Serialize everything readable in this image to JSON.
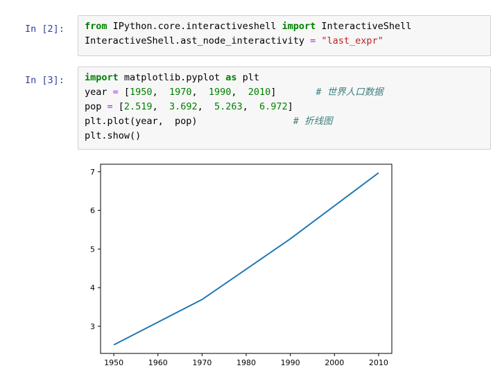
{
  "cells": [
    {
      "prompt": "In  [2]:",
      "lines": [
        [
          {
            "t": "kw",
            "v": "from"
          },
          {
            "t": "plain",
            "v": " IPython.core.interactiveshell "
          },
          {
            "t": "kw",
            "v": "import"
          },
          {
            "t": "plain",
            "v": " InteractiveShell"
          }
        ],
        [
          {
            "t": "plain",
            "v": "InteractiveShell.ast_node_interactivity "
          },
          {
            "t": "op",
            "v": "="
          },
          {
            "t": "plain",
            "v": " "
          },
          {
            "t": "str",
            "v": "\"last_expr\""
          }
        ]
      ]
    },
    {
      "prompt": "In  [3]:",
      "lines": [
        [
          {
            "t": "kw",
            "v": "import"
          },
          {
            "t": "plain",
            "v": " matplotlib.pyplot "
          },
          {
            "t": "kw",
            "v": "as"
          },
          {
            "t": "plain",
            "v": " plt"
          }
        ],
        [
          {
            "t": "plain",
            "v": "year "
          },
          {
            "t": "op",
            "v": "="
          },
          {
            "t": "plain",
            "v": " ["
          },
          {
            "t": "num",
            "v": "1950"
          },
          {
            "t": "plain",
            "v": ",  "
          },
          {
            "t": "num",
            "v": "1970"
          },
          {
            "t": "plain",
            "v": ",  "
          },
          {
            "t": "num",
            "v": "1990"
          },
          {
            "t": "plain",
            "v": ",  "
          },
          {
            "t": "num",
            "v": "2010"
          },
          {
            "t": "plain",
            "v": "]       "
          },
          {
            "t": "cmt",
            "v": "# 世界人口数据"
          }
        ],
        [
          {
            "t": "plain",
            "v": "pop "
          },
          {
            "t": "op",
            "v": "="
          },
          {
            "t": "plain",
            "v": " ["
          },
          {
            "t": "num",
            "v": "2.519"
          },
          {
            "t": "plain",
            "v": ",  "
          },
          {
            "t": "num",
            "v": "3.692"
          },
          {
            "t": "plain",
            "v": ",  "
          },
          {
            "t": "num",
            "v": "5.263"
          },
          {
            "t": "plain",
            "v": ",  "
          },
          {
            "t": "num",
            "v": "6.972"
          },
          {
            "t": "plain",
            "v": "]"
          }
        ],
        [
          {
            "t": "plain",
            "v": "plt.plot(year,  pop)                 "
          },
          {
            "t": "cmt",
            "v": "# 折线图"
          }
        ],
        [
          {
            "t": "plain",
            "v": "plt.show()"
          }
        ]
      ]
    }
  ],
  "chart_data": {
    "type": "line",
    "x": [
      1950,
      1970,
      1990,
      2010
    ],
    "series": [
      {
        "values": [
          2.519,
          3.692,
          5.263,
          6.972
        ],
        "color": "#1f77b4"
      }
    ],
    "xticks": [
      1950,
      1960,
      1970,
      1980,
      1990,
      2000,
      2010
    ],
    "yticks": [
      3,
      4,
      5,
      6,
      7
    ],
    "xlim": [
      1947,
      2013
    ],
    "ylim": [
      2.297,
      7.194
    ],
    "title": "",
    "xlabel": "",
    "ylabel": "",
    "grid": false
  }
}
